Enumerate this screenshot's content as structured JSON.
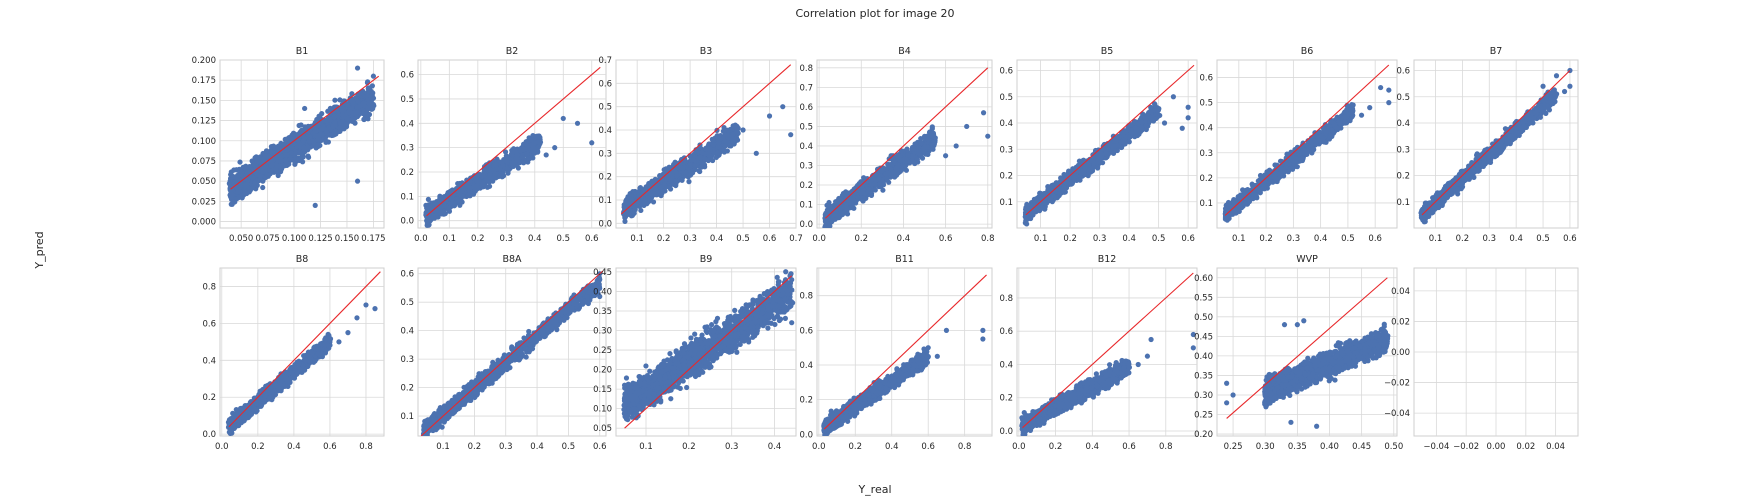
{
  "figure": {
    "title": "Correlation plot for image 20",
    "xlabel": "Y_real",
    "ylabel": "Y_pred"
  },
  "colors": {
    "points": "#4c72b0",
    "identity_line": "#e8282b",
    "grid": "#d9d9d9",
    "frame": "#cfcfcf",
    "text": "#262626"
  },
  "chart_data": [
    {
      "type": "scatter",
      "title": "B1",
      "xlim": [
        0.03,
        0.185
      ],
      "ylim": [
        -0.008,
        0.2
      ],
      "xticks": [
        "0.050",
        "0.075",
        "0.100",
        "0.125",
        "0.150",
        "0.175"
      ],
      "xtick_values": [
        0.05,
        0.075,
        0.1,
        0.125,
        0.15,
        0.175
      ],
      "yticks": [
        "0.000",
        "0.025",
        "0.050",
        "0.075",
        "0.100",
        "0.125",
        "0.150",
        "0.175",
        "0.200"
      ],
      "ytick_values": [
        0,
        0.025,
        0.05,
        0.075,
        0.1,
        0.125,
        0.15,
        0.175,
        0.2
      ],
      "identity_line": [
        [
          0.04,
          0.04
        ],
        [
          0.18,
          0.18
        ]
      ],
      "cloud": {
        "x": [
          0.04,
          0.175
        ],
        "slope": 0.85,
        "intercept": 0.006,
        "spread": 0.018,
        "n": 1600
      },
      "points": [
        [
          0.16,
          0.19
        ],
        [
          0.16,
          0.05
        ],
        [
          0.175,
          0.18
        ],
        [
          0.175,
          0.145
        ],
        [
          0.12,
          0.02
        ],
        [
          0.11,
          0.14
        ]
      ]
    },
    {
      "type": "scatter",
      "title": "B2",
      "xlim": [
        -0.01,
        0.65
      ],
      "ylim": [
        -0.03,
        0.66
      ],
      "xticks": [
        "0.0",
        "0.1",
        "0.2",
        "0.3",
        "0.4",
        "0.5",
        "0.6"
      ],
      "xtick_values": [
        0,
        0.1,
        0.2,
        0.3,
        0.4,
        0.5,
        0.6
      ],
      "yticks": [
        "0.0",
        "0.1",
        "0.2",
        "0.3",
        "0.4",
        "0.5",
        "0.6"
      ],
      "ytick_values": [
        0,
        0.1,
        0.2,
        0.3,
        0.4,
        0.5,
        0.6
      ],
      "identity_line": [
        [
          0.02,
          0.02
        ],
        [
          0.63,
          0.63
        ]
      ],
      "cloud": {
        "x": [
          0.02,
          0.42
        ],
        "slope": 0.75,
        "intercept": 0.01,
        "spread": 0.04,
        "n": 900
      },
      "points": [
        [
          0.5,
          0.42
        ],
        [
          0.55,
          0.4
        ],
        [
          0.6,
          0.32
        ],
        [
          0.47,
          0.3
        ],
        [
          0.44,
          0.27
        ]
      ]
    },
    {
      "type": "scatter",
      "title": "B3",
      "xlim": [
        0.02,
        0.7
      ],
      "ylim": [
        -0.02,
        0.7
      ],
      "xticks": [
        "0.1",
        "0.2",
        "0.3",
        "0.4",
        "0.5",
        "0.6",
        "0.7"
      ],
      "xtick_values": [
        0.1,
        0.2,
        0.3,
        0.4,
        0.5,
        0.6,
        0.7
      ],
      "yticks": [
        "0.0",
        "0.1",
        "0.2",
        "0.3",
        "0.4",
        "0.5",
        "0.6",
        "0.7"
      ],
      "ytick_values": [
        0,
        0.1,
        0.2,
        0.3,
        0.4,
        0.5,
        0.6,
        0.7
      ],
      "identity_line": [
        [
          0.04,
          0.04
        ],
        [
          0.68,
          0.68
        ]
      ],
      "cloud": {
        "x": [
          0.05,
          0.48
        ],
        "slope": 0.78,
        "intercept": 0.02,
        "spread": 0.045,
        "n": 900
      },
      "points": [
        [
          0.65,
          0.5
        ],
        [
          0.6,
          0.46
        ],
        [
          0.68,
          0.38
        ],
        [
          0.55,
          0.3
        ],
        [
          0.5,
          0.4
        ]
      ]
    },
    {
      "type": "scatter",
      "title": "B4",
      "xlim": [
        -0.01,
        0.82
      ],
      "ylim": [
        -0.02,
        0.84
      ],
      "xticks": [
        "0.0",
        "0.2",
        "0.4",
        "0.6",
        "0.8"
      ],
      "xtick_values": [
        0,
        0.2,
        0.4,
        0.6,
        0.8
      ],
      "yticks": [
        "0.0",
        "0.1",
        "0.2",
        "0.3",
        "0.4",
        "0.5",
        "0.6",
        "0.7",
        "0.8"
      ],
      "ytick_values": [
        0,
        0.1,
        0.2,
        0.3,
        0.4,
        0.5,
        0.6,
        0.7,
        0.8
      ],
      "identity_line": [
        [
          0.03,
          0.03
        ],
        [
          0.8,
          0.8
        ]
      ],
      "cloud": {
        "x": [
          0.03,
          0.55
        ],
        "slope": 0.78,
        "intercept": 0.01,
        "spread": 0.05,
        "n": 900
      },
      "points": [
        [
          0.78,
          0.57
        ],
        [
          0.7,
          0.5
        ],
        [
          0.8,
          0.45
        ],
        [
          0.6,
          0.35
        ],
        [
          0.65,
          0.4
        ]
      ]
    },
    {
      "type": "scatter",
      "title": "B5",
      "xlim": [
        0.02,
        0.63
      ],
      "ylim": [
        0.0,
        0.64
      ],
      "xticks": [
        "0.1",
        "0.2",
        "0.3",
        "0.4",
        "0.5",
        "0.6"
      ],
      "xtick_values": [
        0.1,
        0.2,
        0.3,
        0.4,
        0.5,
        0.6
      ],
      "yticks": [
        "0.1",
        "0.2",
        "0.3",
        "0.4",
        "0.5",
        "0.6"
      ],
      "ytick_values": [
        0.1,
        0.2,
        0.3,
        0.4,
        0.5,
        0.6
      ],
      "identity_line": [
        [
          0.05,
          0.05
        ],
        [
          0.62,
          0.62
        ]
      ],
      "cloud": {
        "x": [
          0.05,
          0.5
        ],
        "slope": 0.88,
        "intercept": 0.01,
        "spread": 0.03,
        "n": 1000
      },
      "points": [
        [
          0.6,
          0.46
        ],
        [
          0.58,
          0.38
        ],
        [
          0.6,
          0.42
        ],
        [
          0.55,
          0.5
        ],
        [
          0.52,
          0.4
        ]
      ]
    },
    {
      "type": "scatter",
      "title": "B6",
      "xlim": [
        0.02,
        0.68
      ],
      "ylim": [
        0.0,
        0.67
      ],
      "xticks": [
        "0.1",
        "0.2",
        "0.3",
        "0.4",
        "0.5",
        "0.6"
      ],
      "xtick_values": [
        0.1,
        0.2,
        0.3,
        0.4,
        0.5,
        0.6
      ],
      "yticks": [
        "0.1",
        "0.2",
        "0.3",
        "0.4",
        "0.5",
        "0.6"
      ],
      "ytick_values": [
        0.1,
        0.2,
        0.3,
        0.4,
        0.5,
        0.6
      ],
      "identity_line": [
        [
          0.05,
          0.05
        ],
        [
          0.65,
          0.65
        ]
      ],
      "cloud": {
        "x": [
          0.05,
          0.52
        ],
        "slope": 0.88,
        "intercept": 0.01,
        "spread": 0.03,
        "n": 1000
      },
      "points": [
        [
          0.65,
          0.55
        ],
        [
          0.65,
          0.5
        ],
        [
          0.62,
          0.56
        ],
        [
          0.58,
          0.48
        ],
        [
          0.55,
          0.45
        ]
      ]
    },
    {
      "type": "scatter",
      "title": "B7",
      "xlim": [
        0.02,
        0.63
      ],
      "ylim": [
        0.0,
        0.64
      ],
      "xticks": [
        "0.1",
        "0.2",
        "0.3",
        "0.4",
        "0.5",
        "0.6"
      ],
      "xtick_values": [
        0.1,
        0.2,
        0.3,
        0.4,
        0.5,
        0.6
      ],
      "yticks": [
        "0.1",
        "0.2",
        "0.3",
        "0.4",
        "0.5",
        "0.6"
      ],
      "ytick_values": [
        0.1,
        0.2,
        0.3,
        0.4,
        0.5,
        0.6
      ],
      "identity_line": [
        [
          0.05,
          0.05
        ],
        [
          0.6,
          0.6
        ]
      ],
      "cloud": {
        "x": [
          0.05,
          0.55
        ],
        "slope": 0.92,
        "intercept": 0.005,
        "spread": 0.028,
        "n": 1100
      },
      "points": [
        [
          0.6,
          0.6
        ],
        [
          0.6,
          0.54
        ],
        [
          0.55,
          0.58
        ],
        [
          0.58,
          0.52
        ],
        [
          0.5,
          0.54
        ]
      ]
    },
    {
      "type": "scatter",
      "title": "B8",
      "xlim": [
        -0.01,
        0.9
      ],
      "ylim": [
        -0.01,
        0.9
      ],
      "xticks": [
        "0.0",
        "0.2",
        "0.4",
        "0.6",
        "0.8"
      ],
      "xtick_values": [
        0,
        0.2,
        0.4,
        0.6,
        0.8
      ],
      "yticks": [
        "0.0",
        "0.2",
        "0.4",
        "0.6",
        "0.8"
      ],
      "ytick_values": [
        0,
        0.2,
        0.4,
        0.6,
        0.8
      ],
      "identity_line": [
        [
          0.04,
          0.04
        ],
        [
          0.88,
          0.88
        ]
      ],
      "cloud": {
        "x": [
          0.04,
          0.6
        ],
        "slope": 0.82,
        "intercept": 0.01,
        "spread": 0.04,
        "n": 1000
      },
      "points": [
        [
          0.85,
          0.68
        ],
        [
          0.8,
          0.7
        ],
        [
          0.75,
          0.63
        ],
        [
          0.7,
          0.55
        ],
        [
          0.65,
          0.5
        ]
      ]
    },
    {
      "type": "scatter",
      "title": "B8A",
      "xlim": [
        0.02,
        0.62
      ],
      "ylim": [
        0.03,
        0.62
      ],
      "xticks": [
        "0.1",
        "0.2",
        "0.3",
        "0.4",
        "0.5",
        "0.6"
      ],
      "xtick_values": [
        0.1,
        0.2,
        0.3,
        0.4,
        0.5,
        0.6
      ],
      "yticks": [
        "0.1",
        "0.2",
        "0.3",
        "0.4",
        "0.5",
        "0.6"
      ],
      "ytick_values": [
        0.1,
        0.2,
        0.3,
        0.4,
        0.5,
        0.6
      ],
      "identity_line": [
        [
          0.03,
          0.03
        ],
        [
          0.61,
          0.61
        ]
      ],
      "cloud": {
        "x": [
          0.04,
          0.6
        ],
        "slope": 0.93,
        "intercept": 0.01,
        "spread": 0.028,
        "n": 1200
      },
      "points": [
        [
          0.6,
          0.6
        ],
        [
          0.6,
          0.52
        ],
        [
          0.58,
          0.56
        ],
        [
          0.55,
          0.5
        ]
      ]
    },
    {
      "type": "scatter",
      "title": "B9",
      "xlim": [
        0.03,
        0.45
      ],
      "ylim": [
        0.03,
        0.46
      ],
      "xticks": [
        "0.1",
        "0.2",
        "0.3",
        "0.4"
      ],
      "xtick_values": [
        0.1,
        0.2,
        0.3,
        0.4
      ],
      "yticks": [
        "0.05",
        "0.10",
        "0.15",
        "0.20",
        "0.25",
        "0.30",
        "0.35",
        "0.40",
        "0.45"
      ],
      "ytick_values": [
        0.05,
        0.1,
        0.15,
        0.2,
        0.25,
        0.3,
        0.35,
        0.4,
        0.45
      ],
      "identity_line": [
        [
          0.05,
          0.05
        ],
        [
          0.44,
          0.44
        ]
      ],
      "cloud": {
        "x": [
          0.05,
          0.44
        ],
        "slope": 0.75,
        "intercept": 0.07,
        "spread": 0.045,
        "n": 1800
      },
      "points": [
        [
          0.05,
          0.16
        ],
        [
          0.05,
          0.11
        ],
        [
          0.44,
          0.43
        ],
        [
          0.44,
          0.32
        ]
      ]
    },
    {
      "type": "scatter",
      "title": "B11",
      "xlim": [
        -0.01,
        0.95
      ],
      "ylim": [
        -0.01,
        0.96
      ],
      "xticks": [
        "0.0",
        "0.2",
        "0.4",
        "0.6",
        "0.8"
      ],
      "xtick_values": [
        0,
        0.2,
        0.4,
        0.6,
        0.8
      ],
      "yticks": [
        "0.0",
        "0.2",
        "0.4",
        "0.6",
        "0.8"
      ],
      "ytick_values": [
        0,
        0.2,
        0.4,
        0.6,
        0.8
      ],
      "identity_line": [
        [
          0.03,
          0.03
        ],
        [
          0.92,
          0.92
        ]
      ],
      "cloud": {
        "x": [
          0.03,
          0.6
        ],
        "slope": 0.72,
        "intercept": 0.02,
        "spread": 0.045,
        "n": 1000
      },
      "points": [
        [
          0.9,
          0.6
        ],
        [
          0.9,
          0.55
        ],
        [
          0.7,
          0.6
        ],
        [
          0.65,
          0.45
        ],
        [
          0.6,
          0.5
        ]
      ]
    },
    {
      "type": "scatter",
      "title": "B12",
      "xlim": [
        -0.01,
        0.97
      ],
      "ylim": [
        -0.03,
        0.98
      ],
      "xticks": [
        "0.0",
        "0.2",
        "0.4",
        "0.6",
        "0.8"
      ],
      "xtick_values": [
        0,
        0.2,
        0.4,
        0.6,
        0.8
      ],
      "yticks": [
        "0.0",
        "0.2",
        "0.4",
        "0.6",
        "0.8"
      ],
      "ytick_values": [
        0,
        0.2,
        0.4,
        0.6,
        0.8
      ],
      "identity_line": [
        [
          0.02,
          0.02
        ],
        [
          0.95,
          0.95
        ]
      ],
      "cloud": {
        "x": [
          0.02,
          0.6
        ],
        "slope": 0.62,
        "intercept": 0.02,
        "spread": 0.05,
        "n": 1000
      },
      "points": [
        [
          0.95,
          0.58
        ],
        [
          0.95,
          0.5
        ],
        [
          0.72,
          0.55
        ],
        [
          0.7,
          0.45
        ],
        [
          0.65,
          0.4
        ]
      ]
    },
    {
      "type": "scatter",
      "title": "WVP",
      "xlim": [
        0.225,
        0.505
      ],
      "ylim": [
        0.195,
        0.625
      ],
      "xticks": [
        "0.25",
        "0.30",
        "0.35",
        "0.40",
        "0.45",
        "0.50"
      ],
      "xtick_values": [
        0.25,
        0.3,
        0.35,
        0.4,
        0.45,
        0.5
      ],
      "yticks": [
        "0.20",
        "0.25",
        "0.30",
        "0.35",
        "0.40",
        "0.45",
        "0.50",
        "0.55",
        "0.60"
      ],
      "ytick_values": [
        0.2,
        0.25,
        0.3,
        0.35,
        0.4,
        0.45,
        0.5,
        0.55,
        0.6
      ],
      "identity_line": [
        [
          0.24,
          0.24
        ],
        [
          0.49,
          0.6
        ]
      ],
      "cloud": {
        "x": [
          0.3,
          0.49
        ],
        "slope": 0.7,
        "intercept": 0.1,
        "spread": 0.03,
        "n": 1500
      },
      "points": [
        [
          0.24,
          0.33
        ],
        [
          0.24,
          0.28
        ],
        [
          0.25,
          0.3
        ],
        [
          0.33,
          0.48
        ],
        [
          0.35,
          0.48
        ],
        [
          0.36,
          0.49
        ],
        [
          0.38,
          0.22
        ],
        [
          0.34,
          0.23
        ]
      ]
    },
    {
      "type": "scatter",
      "title": "",
      "xlim": [
        -0.055,
        0.055
      ],
      "ylim": [
        -0.055,
        0.055
      ],
      "xticks": [
        "−0.04",
        "−0.02",
        "0.00",
        "0.02",
        "0.04"
      ],
      "xtick_values": [
        -0.04,
        -0.02,
        0,
        0.02,
        0.04
      ],
      "yticks": [
        "−0.04",
        "−0.02",
        "0.00",
        "0.02",
        "0.04"
      ],
      "ytick_values": [
        -0.04,
        -0.02,
        0,
        0.02,
        0.04
      ],
      "identity_line": null,
      "cloud": null,
      "points": []
    }
  ]
}
